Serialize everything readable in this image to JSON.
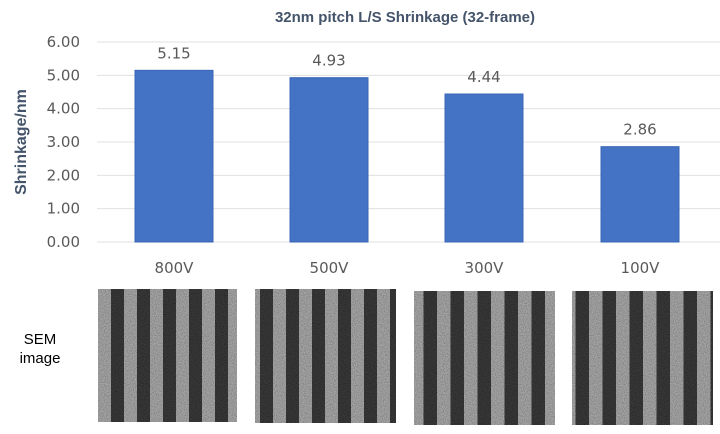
{
  "chart_data": {
    "type": "bar",
    "title": "32nm pitch L/S Shrinkage (32-frame)",
    "xlabel": "",
    "ylabel": "Shrinkage/nm",
    "categories": [
      "800V",
      "500V",
      "300V",
      "100V"
    ],
    "values": [
      5.15,
      4.93,
      4.44,
      2.86
    ],
    "data_labels": [
      "5.15",
      "4.93",
      "4.44",
      "2.86"
    ],
    "ylim": [
      0,
      6
    ],
    "yticks": [
      "0.00",
      "1.00",
      "2.00",
      "3.00",
      "4.00",
      "5.00",
      "6.00"
    ],
    "grid": true,
    "bar_color": "#4472c4"
  },
  "sem": {
    "label_line1": "SEM",
    "label_line2": "image"
  }
}
